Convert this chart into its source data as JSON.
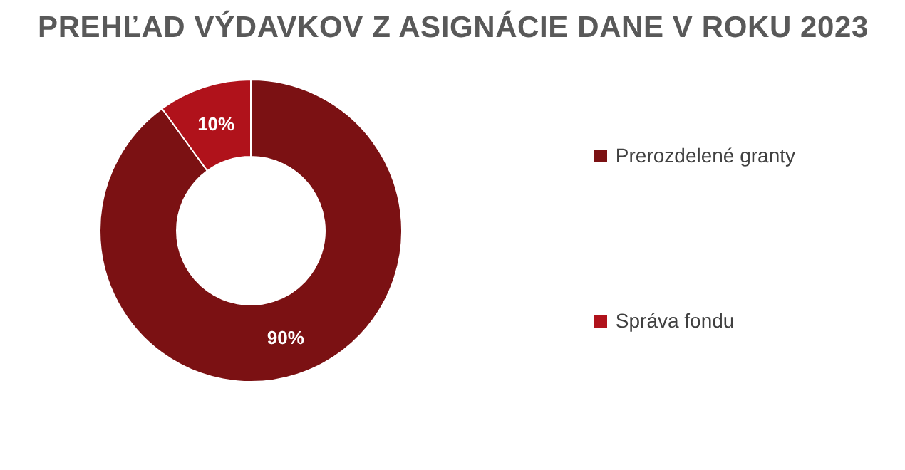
{
  "chart_data": {
    "type": "donut",
    "title": "PREHĽAD VÝDAVKOV Z ASIGNÁCIE DANE V ROKU 2023",
    "categories": [
      "Prerozdelené granty",
      "Správa fondu"
    ],
    "values": [
      90,
      10
    ],
    "colors": [
      "#7b1113",
      "#b0121b"
    ],
    "value_labels": [
      "90%",
      "10%"
    ],
    "legend": "right"
  }
}
